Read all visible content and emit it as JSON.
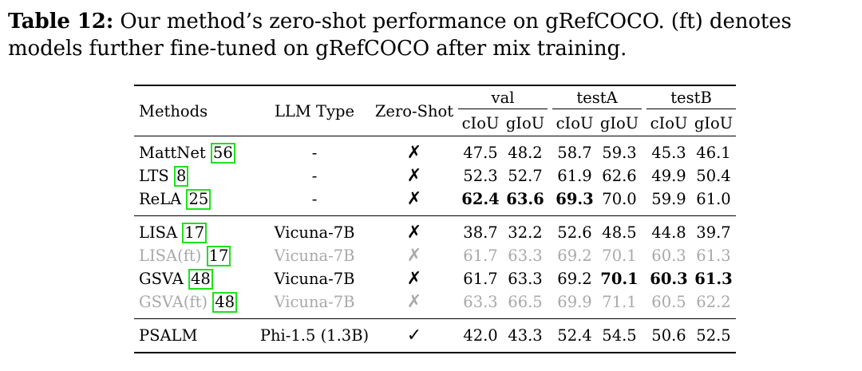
{
  "caption": {
    "label": "Table 12:",
    "text": " Our method’s zero-shot performance on gRefCOCO. (ft) denotes models further fine-tuned on gRefCOCO after mix training."
  },
  "table": {
    "headers": {
      "methods": "Methods",
      "llm_type": "LLM Type",
      "zero_shot": "Zero-Shot",
      "groups": [
        "val",
        "testA",
        "testB"
      ],
      "metrics": [
        "cIoU",
        "gIoU",
        "cIoU",
        "gIoU",
        "cIoU",
        "gIoU"
      ]
    },
    "rows": [
      {
        "method": "MattNet",
        "cite": "56",
        "llm": "-",
        "zero_shot": "✗",
        "values": [
          "47.5",
          "48.2",
          "58.7",
          "59.3",
          "45.3",
          "46.1"
        ]
      },
      {
        "method": "LTS",
        "cite": "8",
        "llm": "-",
        "zero_shot": "✗",
        "values": [
          "52.3",
          "52.7",
          "61.9",
          "62.6",
          "49.9",
          "50.4"
        ]
      },
      {
        "method": "ReLA",
        "cite": "25",
        "llm": "-",
        "zero_shot": "✗",
        "values": [
          "62.4",
          "63.6",
          "69.3",
          "70.0",
          "59.9",
          "61.0"
        ]
      },
      {
        "method": "LISA",
        "cite": "17",
        "llm": "Vicuna-7B",
        "zero_shot": "✗",
        "values": [
          "38.7",
          "32.2",
          "52.6",
          "48.5",
          "44.8",
          "39.7"
        ]
      },
      {
        "method": "LISA(ft)",
        "cite": "17",
        "llm": "Vicuna-7B",
        "zero_shot": "✗",
        "values": [
          "61.7",
          "63.3",
          "69.2",
          "70.1",
          "60.3",
          "61.3"
        ]
      },
      {
        "method": "GSVA",
        "cite": "48",
        "llm": "Vicuna-7B",
        "zero_shot": "✗",
        "values": [
          "61.7",
          "63.3",
          "69.2",
          "70.1",
          "60.3",
          "61.3"
        ]
      },
      {
        "method": "GSVA(ft)",
        "cite": "48",
        "llm": "Vicuna-7B",
        "zero_shot": "✗",
        "values": [
          "63.3",
          "66.5",
          "69.9",
          "71.1",
          "60.5",
          "62.2"
        ]
      },
      {
        "method": "PSALM",
        "cite": "",
        "llm": "Phi-1.5 (1.3B)",
        "zero_shot": "✓",
        "values": [
          "42.0",
          "43.3",
          "52.4",
          "54.5",
          "50.6",
          "52.5"
        ]
      }
    ]
  },
  "colors": {
    "citation_box": "#1ee01e",
    "greyed_text": "#a9a9a9"
  }
}
